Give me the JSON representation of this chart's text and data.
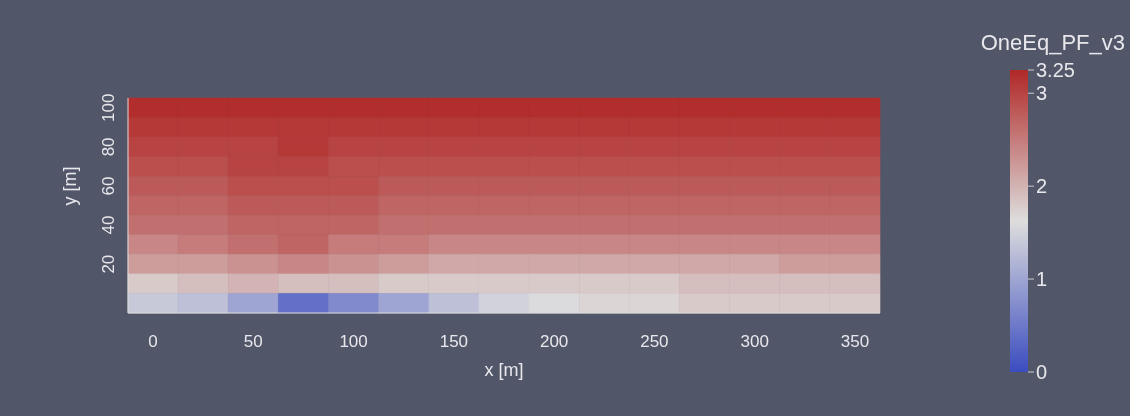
{
  "chart_data": {
    "type": "heatmap",
    "xlabel": "x [m]",
    "ylabel": "y [m]",
    "clabel": "OneEq_PF_v3",
    "clim": [
      0,
      3.25
    ],
    "cticks": [
      0,
      1,
      2,
      3,
      3.25
    ],
    "categories": [
      "0",
      null,
      "50",
      null,
      "100",
      null,
      "150",
      null,
      "200",
      null,
      "250",
      null,
      "300",
      null,
      "350"
    ],
    "y_categories": [
      "100",
      null,
      "80",
      null,
      "60",
      null,
      "40",
      null,
      "20",
      null,
      null
    ],
    "cells": [
      [
        3.2,
        3.2,
        3.2,
        3.2,
        3.2,
        3.2,
        3.2,
        3.2,
        3.2,
        3.2,
        3.2,
        3.2,
        3.2,
        3.2,
        3.2
      ],
      [
        3.1,
        3.1,
        3.1,
        3.1,
        3.1,
        3.1,
        3.1,
        3.1,
        3.1,
        3.1,
        3.1,
        3.1,
        3.1,
        3.1,
        3.1
      ],
      [
        3.0,
        3.0,
        3.0,
        3.1,
        3.0,
        3.0,
        3.0,
        3.0,
        3.0,
        3.0,
        3.0,
        3.0,
        3.0,
        3.0,
        3.0
      ],
      [
        2.9,
        2.9,
        3.0,
        3.0,
        2.9,
        2.9,
        2.9,
        2.9,
        2.9,
        2.9,
        2.9,
        2.9,
        2.9,
        2.9,
        2.9
      ],
      [
        2.8,
        2.8,
        2.9,
        2.9,
        2.9,
        2.8,
        2.8,
        2.8,
        2.8,
        2.8,
        2.8,
        2.8,
        2.8,
        2.8,
        2.8
      ],
      [
        2.7,
        2.7,
        2.8,
        2.8,
        2.8,
        2.7,
        2.7,
        2.7,
        2.7,
        2.7,
        2.7,
        2.7,
        2.7,
        2.7,
        2.7
      ],
      [
        2.6,
        2.6,
        2.7,
        2.7,
        2.7,
        2.6,
        2.6,
        2.6,
        2.6,
        2.6,
        2.6,
        2.6,
        2.6,
        2.6,
        2.6
      ],
      [
        2.4,
        2.5,
        2.6,
        2.7,
        2.5,
        2.5,
        2.4,
        2.4,
        2.4,
        2.4,
        2.4,
        2.4,
        2.4,
        2.4,
        2.4
      ],
      [
        2.2,
        2.2,
        2.3,
        2.4,
        2.3,
        2.2,
        2.1,
        2.1,
        2.1,
        2.1,
        2.1,
        2.1,
        2.1,
        2.2,
        2.2
      ],
      [
        1.8,
        1.9,
        2.0,
        1.9,
        1.9,
        1.8,
        1.8,
        1.8,
        1.8,
        1.8,
        1.8,
        1.9,
        1.9,
        1.9,
        1.9
      ],
      [
        1.4,
        1.3,
        1.0,
        0.4,
        0.7,
        1.0,
        1.3,
        1.5,
        1.6,
        1.7,
        1.7,
        1.8,
        1.8,
        1.8,
        1.8
      ]
    ]
  }
}
